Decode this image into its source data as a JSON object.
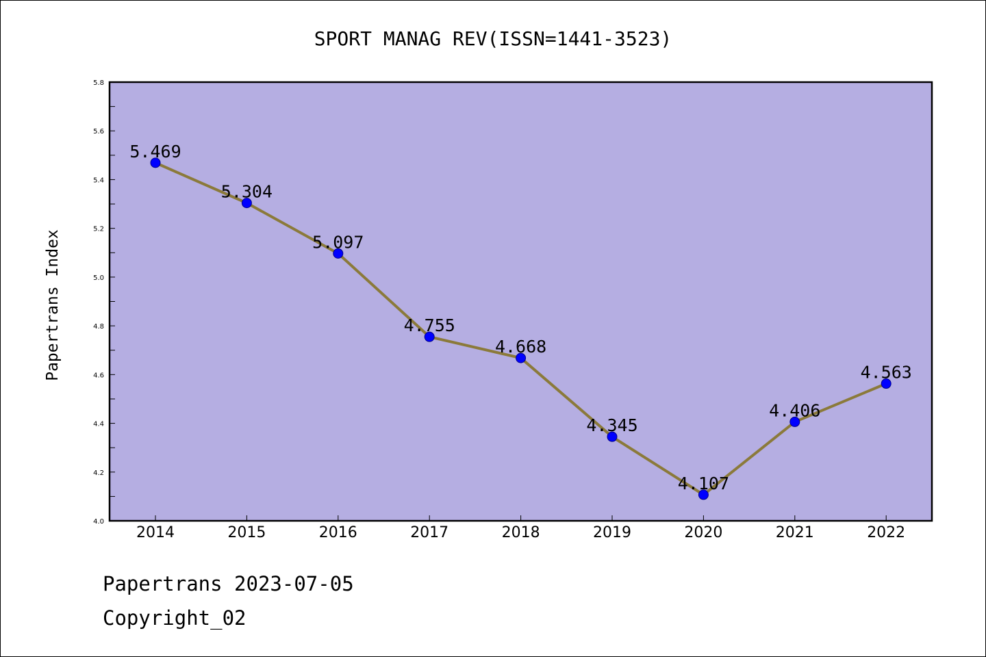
{
  "chart_data": {
    "type": "line",
    "title": "SPORT MANAG REV(ISSN=1441-3523)",
    "xlabel": "",
    "ylabel": "Papertrans Index",
    "categories": [
      "2014",
      "2015",
      "2016",
      "2017",
      "2018",
      "2019",
      "2020",
      "2021",
      "2022"
    ],
    "series": [
      {
        "values": [
          5.469,
          5.304,
          5.097,
          4.755,
          4.668,
          4.345,
          4.107,
          4.406,
          4.563
        ],
        "labels": [
          "5.469",
          "5.304",
          "5.097",
          "4.755",
          "4.668",
          "4.345",
          "4.107",
          "4.406",
          "4.563"
        ]
      }
    ],
    "ylim": [
      4.0,
      5.8
    ],
    "yticks": [
      "4.0",
      "4.2",
      "4.4",
      "4.6",
      "4.8",
      "5.0",
      "5.2",
      "5.4",
      "5.6",
      "5.8"
    ],
    "grid": false,
    "legend": "none",
    "colors": {
      "plot_background": "#b5aee2",
      "line": "#8b7a3a",
      "marker": "#0000ff"
    }
  },
  "footer": {
    "line1": "Papertrans 2023-07-05",
    "line2": "Copyright_02"
  }
}
